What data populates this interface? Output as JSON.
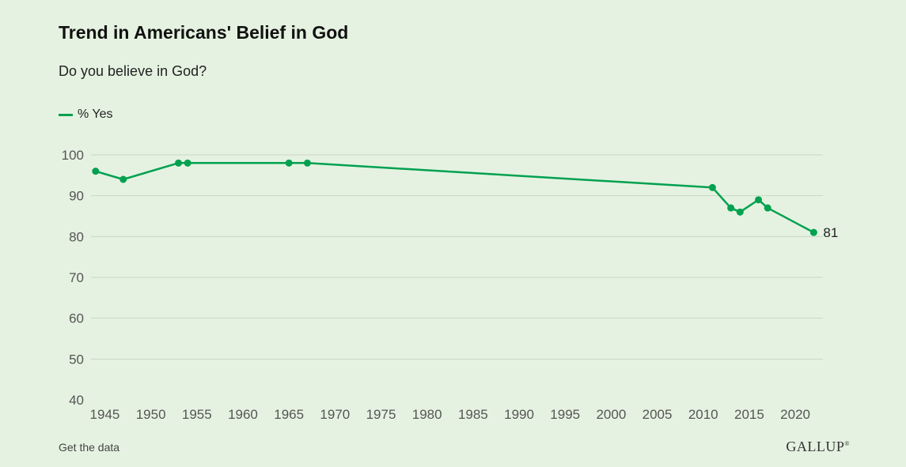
{
  "header": {
    "title": "Trend in Americans' Belief in God",
    "subtitle": "Do you believe in God?"
  },
  "legend": {
    "label": "% Yes"
  },
  "footer": {
    "get_data_label": "Get the data",
    "brand": "GALLUP"
  },
  "colors": {
    "series": "#00a14f",
    "grid": "#c9d6c5",
    "axis_text": "#555555"
  },
  "chart_data": {
    "type": "line",
    "title": "Trend in Americans' Belief in God",
    "subtitle": "Do you believe in God?",
    "xlabel": "",
    "ylabel": "",
    "xlim": [
      1943.5,
      2023
    ],
    "ylim": [
      40,
      100
    ],
    "xticks": [
      1945,
      1950,
      1955,
      1960,
      1965,
      1970,
      1975,
      1980,
      1985,
      1990,
      1995,
      2000,
      2005,
      2010,
      2015,
      2020
    ],
    "yticks": [
      40,
      50,
      60,
      70,
      80,
      90,
      100
    ],
    "grid": true,
    "legend_position": "top-left",
    "series": [
      {
        "name": "% Yes",
        "x": [
          1944,
          1947,
          1953,
          1954,
          1965,
          1967,
          2011,
          2013,
          2014,
          2016,
          2017,
          2022
        ],
        "values": [
          96,
          94,
          98,
          98,
          98,
          98,
          92,
          87,
          86,
          89,
          87,
          81
        ],
        "end_label": "81"
      }
    ]
  }
}
